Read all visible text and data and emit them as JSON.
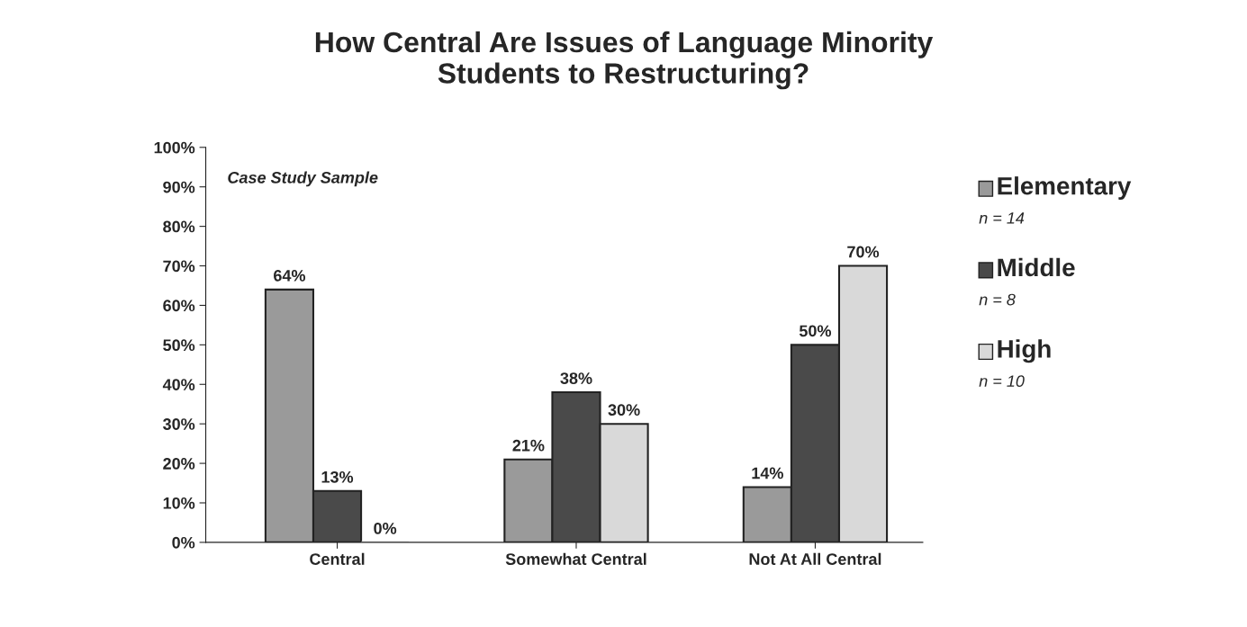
{
  "chart_data": {
    "type": "bar",
    "title": "How Central Are Issues of Language Minority\nStudents to Restructuring?",
    "categories": [
      "Central",
      "Somewhat Central",
      "Not At All Central"
    ],
    "series": [
      {
        "name": "Elementary",
        "color": "#9a9a9a",
        "values": [
          64,
          21,
          14
        ],
        "value_labels": [
          "64%",
          "21%",
          "14%"
        ]
      },
      {
        "name": "Middle",
        "color": "#4a4a4a",
        "values": [
          13,
          38,
          50
        ],
        "value_labels": [
          "13%",
          "38%",
          "50%"
        ]
      },
      {
        "name": "High",
        "color": "#d9d9d9",
        "values": [
          0,
          30,
          70
        ],
        "value_labels": [
          "0%",
          "30%",
          "70%"
        ]
      }
    ],
    "ylim": [
      0,
      100
    ],
    "yticks": [
      {
        "value": 0,
        "label": "0%"
      },
      {
        "value": 10,
        "label": "10%"
      },
      {
        "value": 20,
        "label": "20%"
      },
      {
        "value": 30,
        "label": "30%"
      },
      {
        "value": 40,
        "label": "40%"
      },
      {
        "value": 50,
        "label": "50%"
      },
      {
        "value": 60,
        "label": "60%"
      },
      {
        "value": 70,
        "label": "70%"
      },
      {
        "value": 80,
        "label": "80%"
      },
      {
        "value": 90,
        "label": "90%"
      },
      {
        "value": 100,
        "label": "100%"
      }
    ],
    "annotations": [
      "Case Study Sample",
      "n = 14",
      "n = 8",
      "n = 10"
    ],
    "legend": "right",
    "grid": false
  }
}
